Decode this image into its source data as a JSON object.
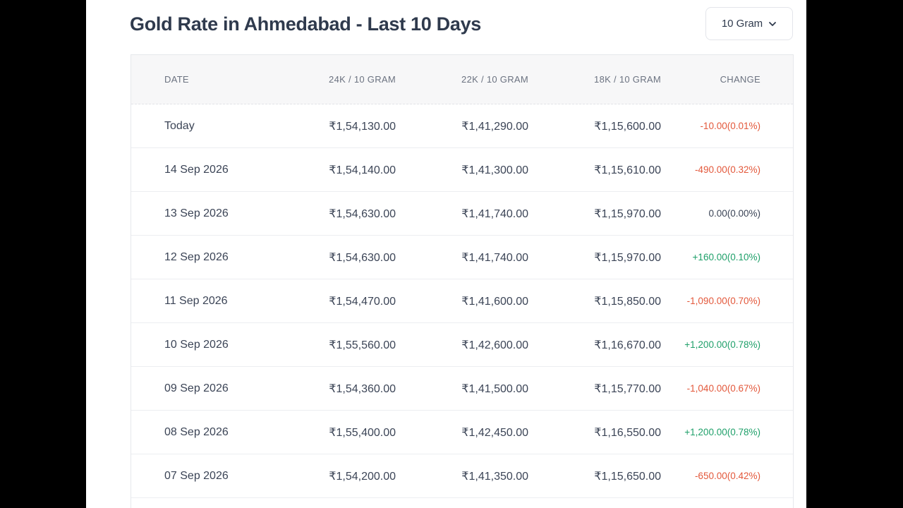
{
  "header": {
    "title": "Gold Rate in Ahmedabad - Last 10 Days",
    "unit_selector": "10 Gram"
  },
  "colors": {
    "up": "#1fa06a",
    "down": "#e3583b",
    "neutral": "#3b4456"
  },
  "table": {
    "columns": [
      "DATE",
      "24K / 10 GRAM",
      "22K / 10 GRAM",
      "18K / 10 GRAM",
      "CHANGE"
    ],
    "rows": [
      {
        "date": "Today",
        "k24": "₹1,54,130.00",
        "k22": "₹1,41,290.00",
        "k18": "₹1,15,600.00",
        "change": "-10.00(0.01%)",
        "trend": "down"
      },
      {
        "date": "14 Sep 2026",
        "k24": "₹1,54,140.00",
        "k22": "₹1,41,300.00",
        "k18": "₹1,15,610.00",
        "change": "-490.00(0.32%)",
        "trend": "down"
      },
      {
        "date": "13 Sep 2026",
        "k24": "₹1,54,630.00",
        "k22": "₹1,41,740.00",
        "k18": "₹1,15,970.00",
        "change": "0.00(0.00%)",
        "trend": "neutral"
      },
      {
        "date": "12 Sep 2026",
        "k24": "₹1,54,630.00",
        "k22": "₹1,41,740.00",
        "k18": "₹1,15,970.00",
        "change": "+160.00(0.10%)",
        "trend": "up"
      },
      {
        "date": "11 Sep 2026",
        "k24": "₹1,54,470.00",
        "k22": "₹1,41,600.00",
        "k18": "₹1,15,850.00",
        "change": "-1,090.00(0.70%)",
        "trend": "down"
      },
      {
        "date": "10 Sep 2026",
        "k24": "₹1,55,560.00",
        "k22": "₹1,42,600.00",
        "k18": "₹1,16,670.00",
        "change": "+1,200.00(0.78%)",
        "trend": "up"
      },
      {
        "date": "09 Sep 2026",
        "k24": "₹1,54,360.00",
        "k22": "₹1,41,500.00",
        "k18": "₹1,15,770.00",
        "change": "-1,040.00(0.67%)",
        "trend": "down"
      },
      {
        "date": "08 Sep 2026",
        "k24": "₹1,55,400.00",
        "k22": "₹1,42,450.00",
        "k18": "₹1,16,550.00",
        "change": "+1,200.00(0.78%)",
        "trend": "up"
      },
      {
        "date": "07 Sep 2026",
        "k24": "₹1,54,200.00",
        "k22": "₹1,41,350.00",
        "k18": "₹1,15,650.00",
        "change": "-650.00(0.42%)",
        "trend": "down"
      }
    ]
  }
}
